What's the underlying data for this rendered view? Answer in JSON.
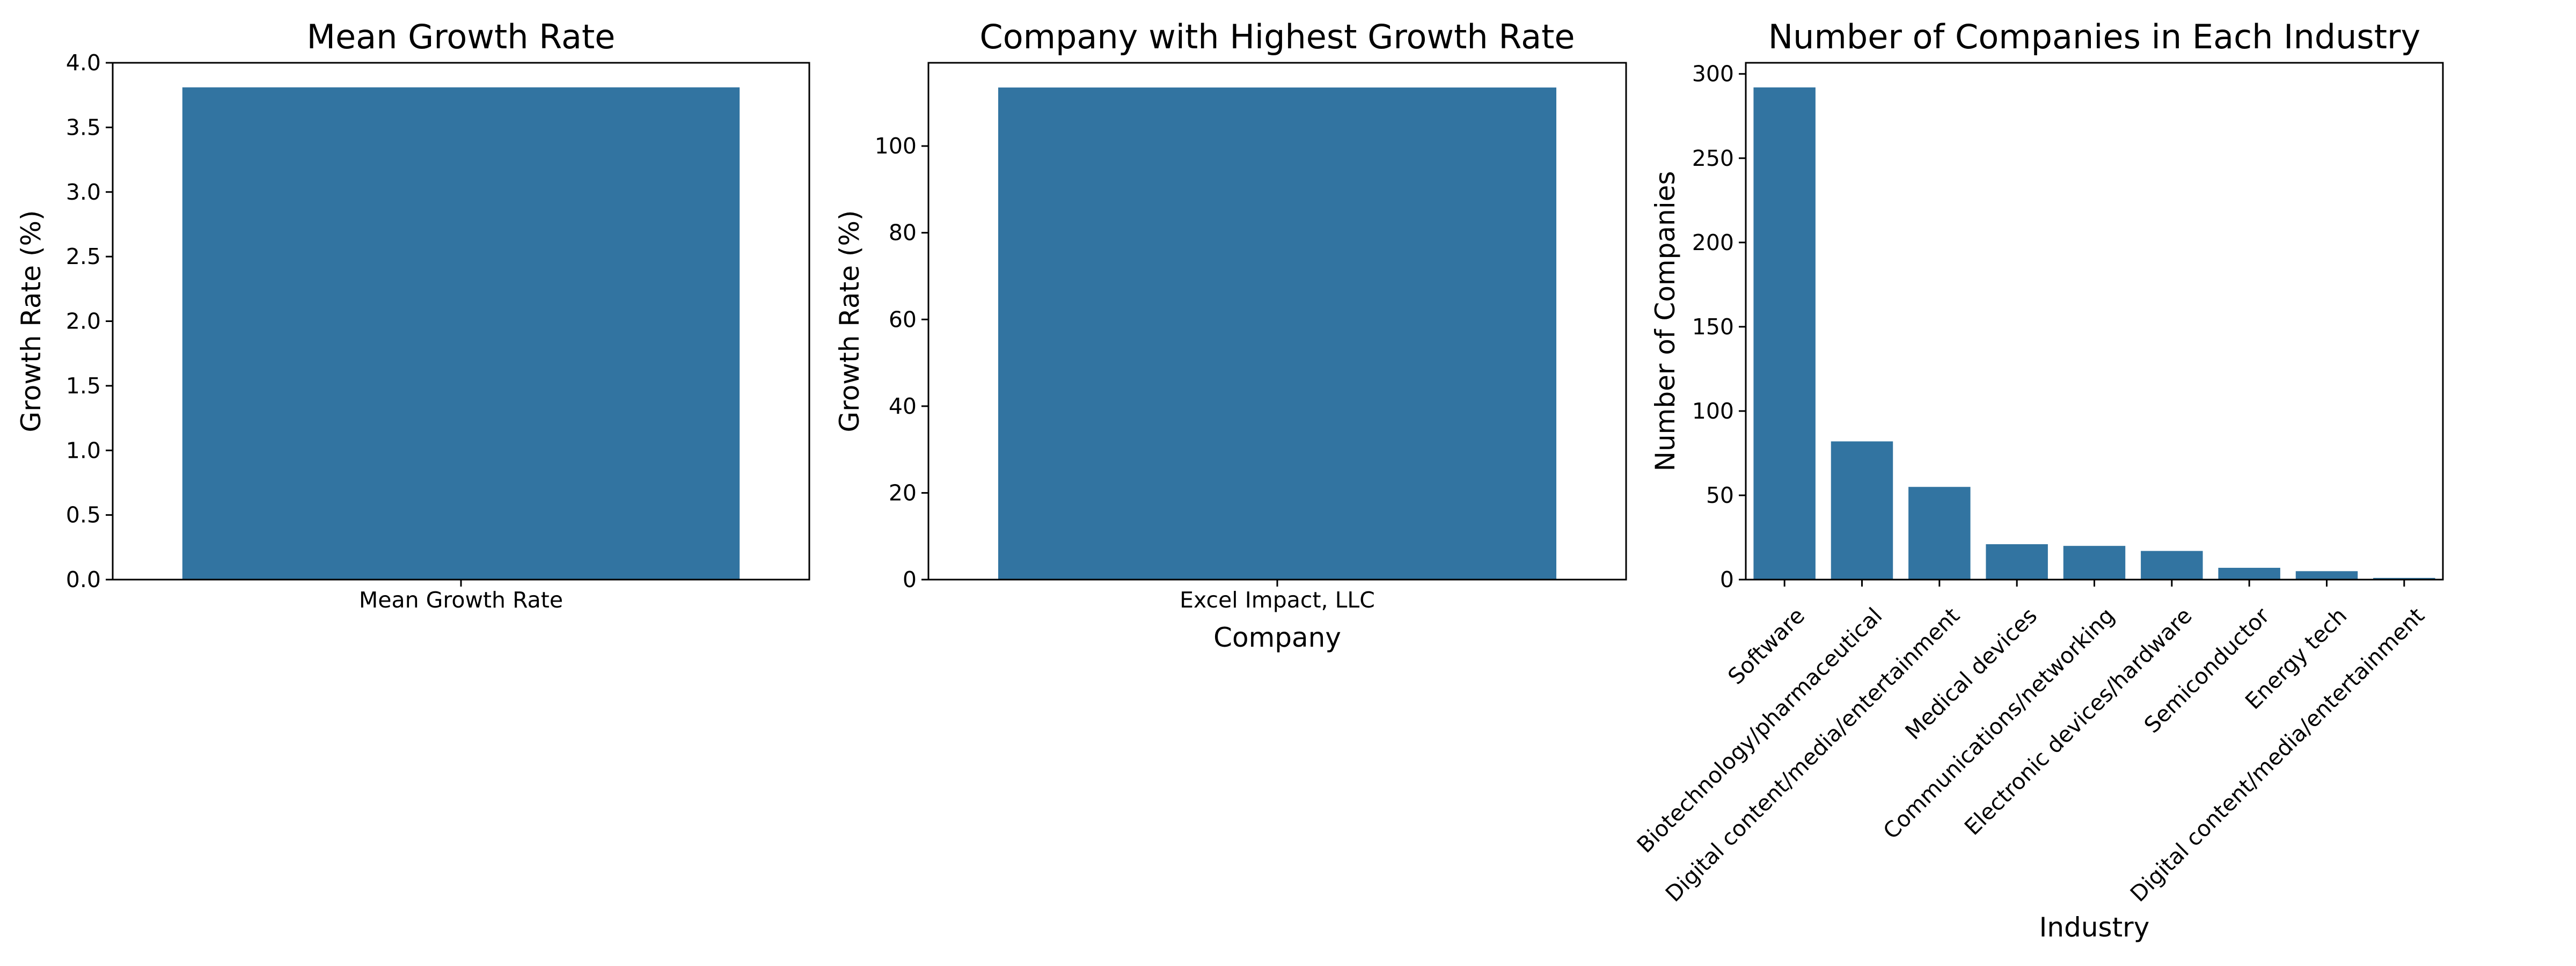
{
  "chart_data": [
    {
      "type": "bar",
      "title": "Mean Growth Rate",
      "xlabel": "",
      "ylabel": "Growth Rate (%)",
      "categories": [
        "Mean Growth Rate"
      ],
      "values": [
        3.81
      ],
      "ylim": [
        0,
        4.0
      ],
      "yticks": [
        "0.0",
        "0.5",
        "1.0",
        "1.5",
        "2.0",
        "2.5",
        "3.0",
        "3.5",
        "4.0"
      ],
      "color": "#3274a1",
      "grid": false
    },
    {
      "type": "bar",
      "title": "Company with Highest Growth Rate",
      "xlabel": "Company",
      "ylabel": "Growth Rate (%)",
      "categories": [
        "Excel Impact, LLC"
      ],
      "values": [
        113.5
      ],
      "ylim": [
        0,
        119.2
      ],
      "yticks": [
        "0",
        "20",
        "40",
        "60",
        "80",
        "100"
      ],
      "color": "#3274a1",
      "grid": false
    },
    {
      "type": "bar",
      "title": "Number of Companies in Each Industry",
      "xlabel": "Industry",
      "ylabel": "Number of Companies",
      "categories": [
        "Software",
        "Biotechnology/pharmaceutical",
        "Digital content/media/entertainment",
        "Medical devices",
        "Communications/networking",
        "Electronic devices/hardware",
        "Semiconductor",
        "Energy tech",
        "Digital content/media/entertainment"
      ],
      "values": [
        292,
        82,
        55,
        21,
        20,
        17,
        7,
        5,
        1
      ],
      "ylim": [
        0,
        306.6
      ],
      "yticks": [
        "0",
        "50",
        "100",
        "150",
        "200",
        "250",
        "300"
      ],
      "x_tick_rotation": 45,
      "color": "#3274a1",
      "grid": false
    }
  ]
}
